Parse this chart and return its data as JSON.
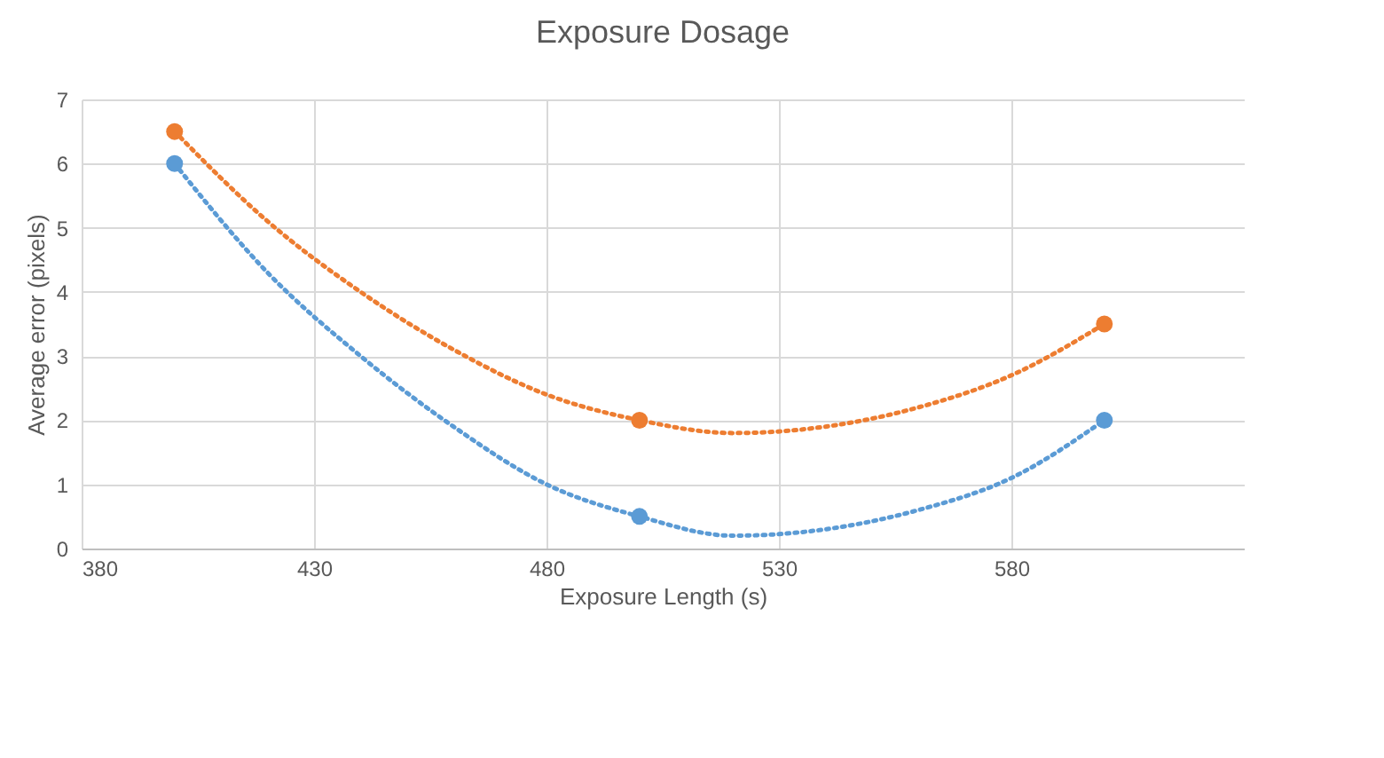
{
  "chart_data": {
    "type": "scatter",
    "title": "Exposure Dosage",
    "xlabel": "Exposure Length (s)",
    "ylabel": "Average error (pixels)",
    "xlim": [
      380,
      630
    ],
    "xticks": [
      380,
      430,
      480,
      530,
      580
    ],
    "ylim": [
      0,
      7
    ],
    "yticks": [
      0,
      1,
      2,
      3,
      4,
      5,
      6,
      7
    ],
    "grid": true,
    "series": [
      {
        "type": "line",
        "color": "#ed7d31",
        "line_style": "dotted",
        "marker": "none",
        "x": [
          400,
          420,
          440,
          460,
          480,
          500,
          520,
          540,
          560,
          580,
          600
        ],
        "values": [
          6.5,
          5.1,
          4.0,
          3.1,
          2.4,
          2.0,
          1.8,
          1.9,
          2.2,
          2.7,
          3.5
        ]
      },
      {
        "type": "line",
        "color": "#5b9bd5",
        "line_style": "dotted",
        "marker": "none",
        "x": [
          400,
          420,
          440,
          460,
          480,
          500,
          520,
          540,
          560,
          580,
          600
        ],
        "values": [
          6.0,
          4.3,
          3.0,
          1.9,
          1.0,
          0.5,
          0.2,
          0.3,
          0.6,
          1.1,
          2.0
        ]
      },
      {
        "type": "scatter",
        "color": "#ed7d31",
        "marker": "circle",
        "x": [
          400,
          500,
          600
        ],
        "values": [
          6.5,
          2,
          3.5
        ]
      },
      {
        "type": "scatter",
        "color": "#5b9bd5",
        "marker": "circle",
        "x": [
          400,
          500,
          600
        ],
        "values": [
          6,
          0.5,
          2
        ]
      }
    ]
  }
}
